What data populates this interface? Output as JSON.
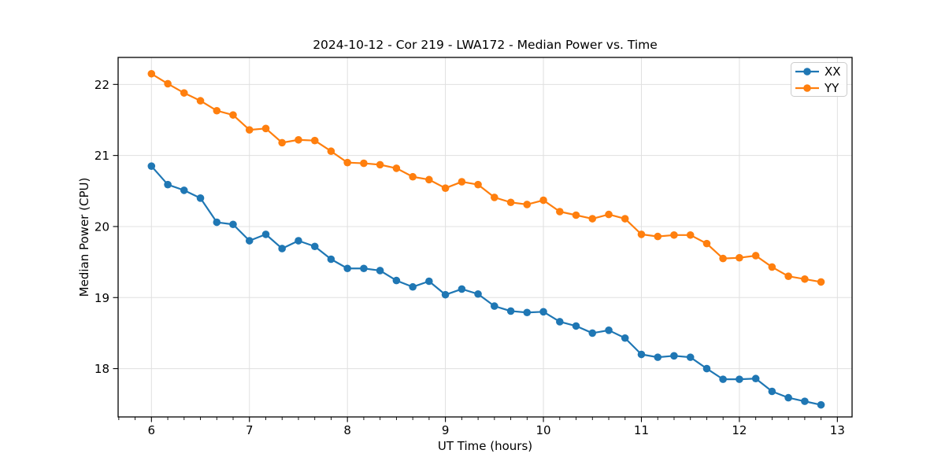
{
  "figure": {
    "background": "#ffffff",
    "text_color": "#000000",
    "grid_color": "#e0e0e0"
  },
  "chart_data": {
    "type": "line",
    "title": "2024-10-12 - Cor 219 - LWA172 - Median Power vs. Time",
    "xlabel": "UT Time (hours)",
    "ylabel": "Median Power (CPU)",
    "xlim": [
      5.66,
      13.15
    ],
    "ylim": [
      17.32,
      22.38
    ],
    "xticks": [
      6,
      7,
      8,
      9,
      10,
      11,
      12,
      13
    ],
    "yticks": [
      18,
      19,
      20,
      21,
      22
    ],
    "x_minor_step": 0.16667,
    "grid": true,
    "legend_position": "upper right",
    "x": [
      6.0,
      6.167,
      6.333,
      6.5,
      6.667,
      6.833,
      7.0,
      7.167,
      7.333,
      7.5,
      7.667,
      7.833,
      8.0,
      8.167,
      8.333,
      8.5,
      8.667,
      8.833,
      9.0,
      9.167,
      9.333,
      9.5,
      9.667,
      9.833,
      10.0,
      10.167,
      10.333,
      10.5,
      10.667,
      10.833,
      11.0,
      11.167,
      11.333,
      11.5,
      11.667,
      11.833,
      12.0,
      12.167,
      12.333,
      12.5,
      12.667,
      12.833
    ],
    "series": [
      {
        "name": "XX",
        "color": "#1f77b4",
        "values": [
          20.85,
          20.59,
          20.51,
          20.4,
          20.06,
          20.03,
          19.8,
          19.89,
          19.69,
          19.8,
          19.72,
          19.54,
          19.41,
          19.41,
          19.38,
          19.24,
          19.15,
          19.23,
          19.04,
          19.12,
          19.05,
          18.88,
          18.81,
          18.79,
          18.8,
          18.66,
          18.6,
          18.5,
          18.54,
          18.43,
          18.2,
          18.16,
          18.18,
          18.16,
          18.0,
          17.85,
          17.85,
          17.86,
          17.68,
          17.59,
          17.54,
          17.49
        ]
      },
      {
        "name": "YY",
        "color": "#ff7f0e",
        "values": [
          22.15,
          22.01,
          21.88,
          21.77,
          21.63,
          21.57,
          21.36,
          21.38,
          21.18,
          21.22,
          21.21,
          21.06,
          20.9,
          20.89,
          20.87,
          20.82,
          20.7,
          20.66,
          20.54,
          20.63,
          20.59,
          20.41,
          20.34,
          20.31,
          20.37,
          20.21,
          20.16,
          20.11,
          20.17,
          20.11,
          19.89,
          19.86,
          19.88,
          19.88,
          19.76,
          19.55,
          19.56,
          19.59,
          19.43,
          19.3,
          19.26,
          19.22
        ]
      }
    ]
  }
}
